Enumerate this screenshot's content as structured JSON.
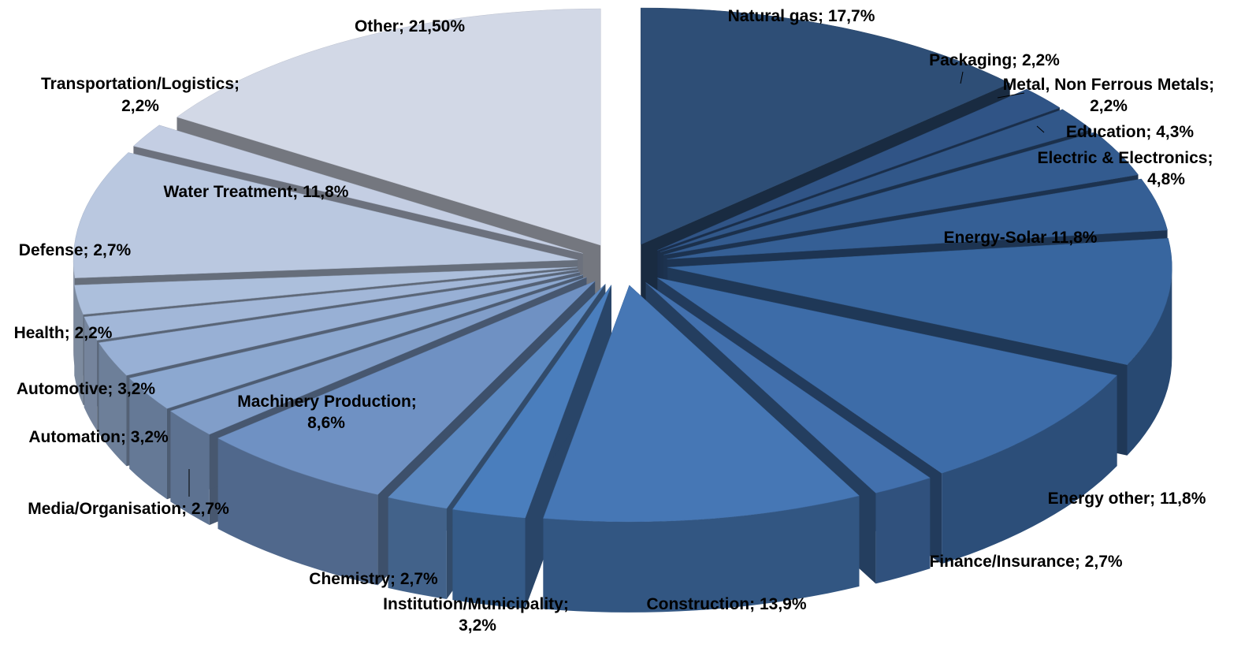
{
  "chart_data": {
    "type": "pie",
    "style": "3d-exploded",
    "legend": "none",
    "slices": [
      {
        "label": "Natural gas; 17,7%",
        "name": "Natural gas",
        "value": 17.7,
        "color": "#2e4e76"
      },
      {
        "label": "Packaging; 2,2%",
        "name": "Packaging",
        "value": 2.2,
        "color": "#305486"
      },
      {
        "label": "Metal, Non Ferrous Metals; 2,2%",
        "name": "Metal, Non Ferrous Metals",
        "value": 2.2,
        "color": "#315789"
      },
      {
        "label": "Education; 4,3%",
        "name": "Education",
        "value": 4.3,
        "color": "#335b8f"
      },
      {
        "label": "Electric & Electronics; 4,8%",
        "name": "Electric & Electronics",
        "value": 4.8,
        "color": "#355f95"
      },
      {
        "label": "Energy-Solar 11,8%",
        "name": "Energy-Solar",
        "value": 11.8,
        "color": "#38669f"
      },
      {
        "label": "Energy other; 11,8%",
        "name": "Energy other",
        "value": 11.8,
        "color": "#3d6ca8"
      },
      {
        "label": "Finance/Insurance; 2,7%",
        "name": "Finance/Insurance",
        "value": 2.7,
        "color": "#4270ad"
      },
      {
        "label": "Construction; 13,9%",
        "name": "Construction",
        "value": 13.9,
        "color": "#4677b5"
      },
      {
        "label": "Institution/Municipality; 3,2%",
        "name": "Institution/Municipality",
        "value": 3.2,
        "color": "#4a7ebd"
      },
      {
        "label": "Chemistry; 2,7%",
        "name": "Chemistry",
        "value": 2.7,
        "color": "#5b88c0"
      },
      {
        "label": "Machinery Production; 8,6%",
        "name": "Machinery Production",
        "value": 8.6,
        "color": "#6f91c3"
      },
      {
        "label": "Media/Organisation; 2,7%",
        "name": "Media/Organisation",
        "value": 2.7,
        "color": "#819ec9"
      },
      {
        "label": "Automation; 3,2%",
        "name": "Automation",
        "value": 3.2,
        "color": "#8ca8d0"
      },
      {
        "label": "Automotive; 3,2%",
        "name": "Automotive",
        "value": 3.2,
        "color": "#98b0d5"
      },
      {
        "label": "Health; 2,2%",
        "name": "Health",
        "value": 2.2,
        "color": "#a2b7d8"
      },
      {
        "label": "Defense; 2,7%",
        "name": "Defense",
        "value": 2.7,
        "color": "#acbfdc"
      },
      {
        "label": "Water Treatment; 11,8%",
        "name": "Water Treatment",
        "value": 11.8,
        "color": "#bac8e0"
      },
      {
        "label": "Transportation/Logistics; 2,2%",
        "name": "Transportation/Logistics",
        "value": 2.2,
        "color": "#c4cee3"
      },
      {
        "label": "Other; 21,50%",
        "name": "Other",
        "value": 21.5,
        "color": "#d2d8e6"
      }
    ]
  }
}
